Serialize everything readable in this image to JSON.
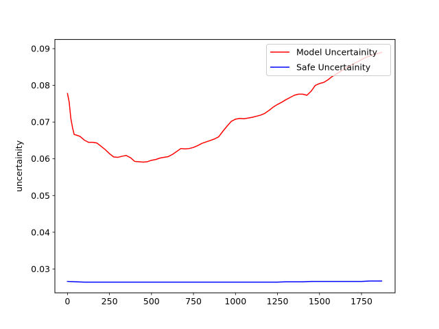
{
  "chart_data": {
    "type": "line",
    "title": "",
    "xlabel": "",
    "ylabel": "uncertainity",
    "xlim": [
      -75,
      1950
    ],
    "ylim": [
      0.0235,
      0.0925
    ],
    "xticks": [
      0,
      250,
      500,
      750,
      1000,
      1250,
      1500,
      1750
    ],
    "xtick_labels": [
      "0",
      "250",
      "500",
      "750",
      "1000",
      "1250",
      "1500",
      "1750"
    ],
    "yticks": [
      0.03,
      0.04,
      0.05,
      0.06,
      0.07,
      0.08,
      0.09
    ],
    "ytick_labels": [
      "0.03",
      "0.04",
      "0.05",
      "0.06",
      "0.07",
      "0.08",
      "0.09"
    ],
    "grid": false,
    "legend_position": "top-right",
    "series": [
      {
        "name": "Model Uncertainity",
        "color": "#ff0000",
        "x": [
          0,
          10,
          20,
          30,
          40,
          50,
          75,
          100,
          125,
          150,
          175,
          200,
          225,
          250,
          275,
          300,
          325,
          350,
          375,
          400,
          425,
          450,
          475,
          500,
          525,
          550,
          575,
          600,
          625,
          650,
          675,
          700,
          725,
          750,
          775,
          800,
          825,
          850,
          875,
          900,
          925,
          950,
          975,
          1000,
          1025,
          1050,
          1075,
          1100,
          1125,
          1150,
          1175,
          1200,
          1225,
          1250,
          1275,
          1300,
          1325,
          1350,
          1375,
          1400,
          1425,
          1450,
          1475,
          1500,
          1525,
          1550,
          1575,
          1600,
          1625,
          1650,
          1675,
          1700,
          1725,
          1750,
          1775,
          1800,
          1825,
          1850,
          1870
        ],
        "y": [
          0.0778,
          0.0755,
          0.071,
          0.0685,
          0.0666,
          0.0665,
          0.0661,
          0.0651,
          0.0645,
          0.0645,
          0.0643,
          0.0634,
          0.0625,
          0.0614,
          0.0605,
          0.0604,
          0.0607,
          0.0609,
          0.0603,
          0.0593,
          0.0592,
          0.0591,
          0.0592,
          0.0596,
          0.0598,
          0.0602,
          0.0604,
          0.0606,
          0.0612,
          0.062,
          0.0628,
          0.0627,
          0.0628,
          0.0631,
          0.0636,
          0.0642,
          0.0646,
          0.065,
          0.0654,
          0.066,
          0.0675,
          0.0689,
          0.0702,
          0.0708,
          0.071,
          0.0709,
          0.0711,
          0.0713,
          0.0716,
          0.0719,
          0.0724,
          0.0732,
          0.0741,
          0.0748,
          0.0754,
          0.0761,
          0.0767,
          0.0773,
          0.0776,
          0.0776,
          0.0773,
          0.0784,
          0.08,
          0.0805,
          0.0808,
          0.0815,
          0.0824,
          0.0831,
          0.0838,
          0.0845,
          0.0852,
          0.0858,
          0.0864,
          0.087,
          0.0876,
          0.088,
          0.0884,
          0.0887,
          0.089
        ]
      },
      {
        "name": "Safe Uncertainity",
        "color": "#0000ff",
        "x": [
          0,
          50,
          100,
          150,
          200,
          250,
          300,
          350,
          400,
          450,
          500,
          550,
          600,
          650,
          700,
          750,
          800,
          850,
          900,
          950,
          1000,
          1050,
          1100,
          1150,
          1200,
          1250,
          1300,
          1350,
          1400,
          1450,
          1500,
          1550,
          1600,
          1650,
          1700,
          1750,
          1800,
          1850,
          1870
        ],
        "y": [
          0.0266,
          0.0265,
          0.0264,
          0.0264,
          0.0264,
          0.0264,
          0.0264,
          0.0264,
          0.0264,
          0.0264,
          0.0264,
          0.0264,
          0.0264,
          0.0264,
          0.0264,
          0.0264,
          0.0264,
          0.0264,
          0.0264,
          0.0264,
          0.0264,
          0.0264,
          0.0264,
          0.0264,
          0.0264,
          0.0264,
          0.0265,
          0.0265,
          0.0265,
          0.0266,
          0.0266,
          0.0266,
          0.0266,
          0.0266,
          0.0266,
          0.0266,
          0.0267,
          0.0267,
          0.0267
        ]
      }
    ]
  }
}
